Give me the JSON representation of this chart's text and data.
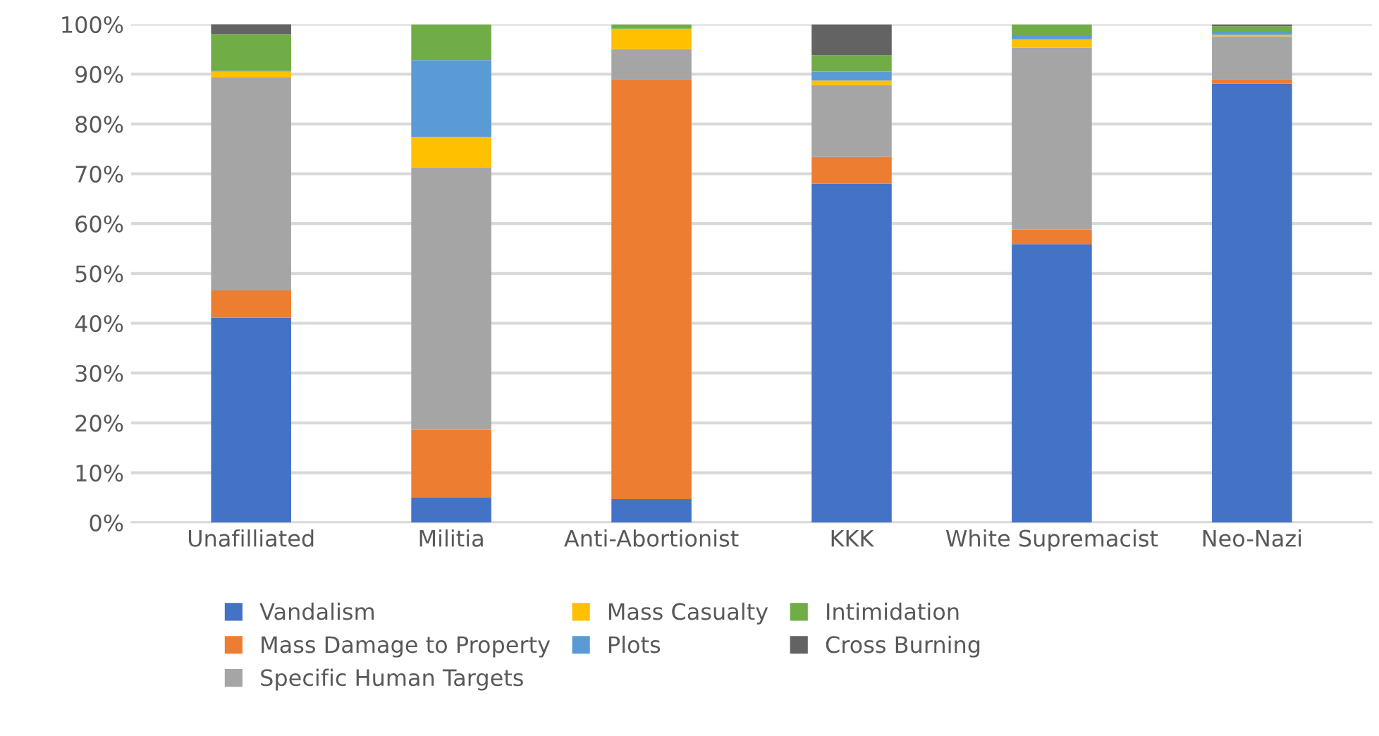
{
  "chart_data": {
    "type": "bar",
    "stacked": true,
    "categories": [
      "Unafilliated",
      "Militia",
      "Anti-Abortionist",
      "KKK",
      "White Supremacist",
      "Neo-Nazi"
    ],
    "series": [
      {
        "name": "Vandalism",
        "color": "#4472c4",
        "values": [
          41.1,
          5.0,
          4.7,
          68.0,
          55.9,
          88.1
        ]
      },
      {
        "name": "Mass Damage to Property",
        "color": "#ed7d31",
        "values": [
          5.5,
          13.6,
          84.3,
          5.4,
          2.9,
          0.9
        ]
      },
      {
        "name": "Specific Human Targets",
        "color": "#a5a5a5",
        "values": [
          42.7,
          52.6,
          6.0,
          14.4,
          36.5,
          8.6
        ]
      },
      {
        "name": "Mass Casualty",
        "color": "#ffc000",
        "values": [
          1.2,
          6.2,
          4.1,
          0.9,
          1.7,
          0.3
        ]
      },
      {
        "name": "Plots",
        "color": "#5b9bd5",
        "values": [
          0.2,
          15.4,
          0,
          1.8,
          0.8,
          0.6
        ]
      },
      {
        "name": "Intimidation",
        "color": "#70ad47",
        "values": [
          7.3,
          7.2,
          0.9,
          3.3,
          2.2,
          1.1
        ]
      },
      {
        "name": "Cross Burning",
        "color": "#636363",
        "values": [
          2.2,
          0,
          0,
          6.2,
          0,
          0.4
        ]
      }
    ],
    "ylim": [
      0,
      100
    ],
    "yticks": [
      {
        "value": 0,
        "label": "0%"
      },
      {
        "value": 10,
        "label": "10%"
      },
      {
        "value": 20,
        "label": "20%"
      },
      {
        "value": 30,
        "label": "30%"
      },
      {
        "value": 40,
        "label": "40%"
      },
      {
        "value": 50,
        "label": "50%"
      },
      {
        "value": 60,
        "label": "60%"
      },
      {
        "value": 70,
        "label": "70%"
      },
      {
        "value": 80,
        "label": "80%"
      },
      {
        "value": 90,
        "label": "90%"
      },
      {
        "value": 100,
        "label": "100%"
      }
    ],
    "grid": "y",
    "legend": "bottom"
  }
}
